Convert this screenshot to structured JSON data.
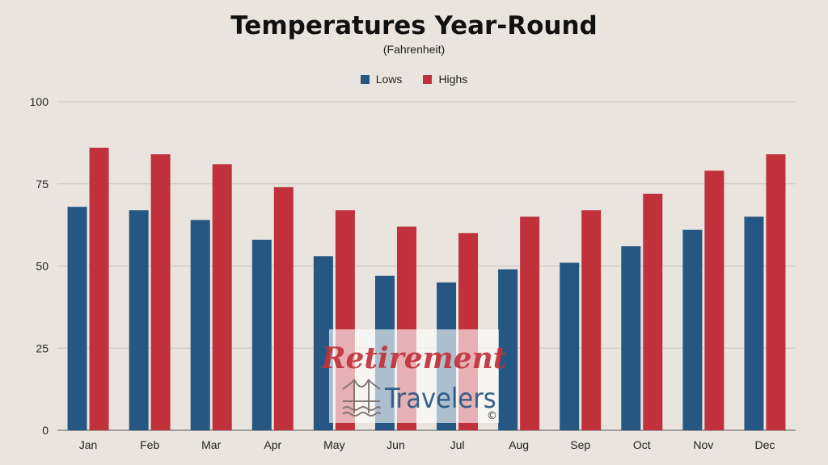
{
  "chart_data": {
    "type": "bar",
    "title": "Temperatures Year-Round",
    "subtitle": "(Fahrenheit)",
    "categories": [
      "Jan",
      "Feb",
      "Mar",
      "Apr",
      "May",
      "Jun",
      "Jul",
      "Aug",
      "Sep",
      "Oct",
      "Nov",
      "Dec"
    ],
    "series": [
      {
        "name": "Lows",
        "color": "#265782",
        "values": [
          68,
          67,
          64,
          58,
          53,
          47,
          45,
          49,
          51,
          56,
          61,
          65
        ]
      },
      {
        "name": "Highs",
        "color": "#c0313b",
        "values": [
          86,
          84,
          81,
          74,
          67,
          62,
          60,
          65,
          67,
          72,
          79,
          84
        ]
      }
    ],
    "ylim": [
      0,
      100
    ],
    "yticks": [
      0,
      25,
      50,
      75,
      100
    ],
    "xlabel": "",
    "ylabel": "",
    "grid": true,
    "legend_position": "top-center"
  },
  "watermark": {
    "line1": "Retirement",
    "line2": "Travelers",
    "mark": "©"
  }
}
